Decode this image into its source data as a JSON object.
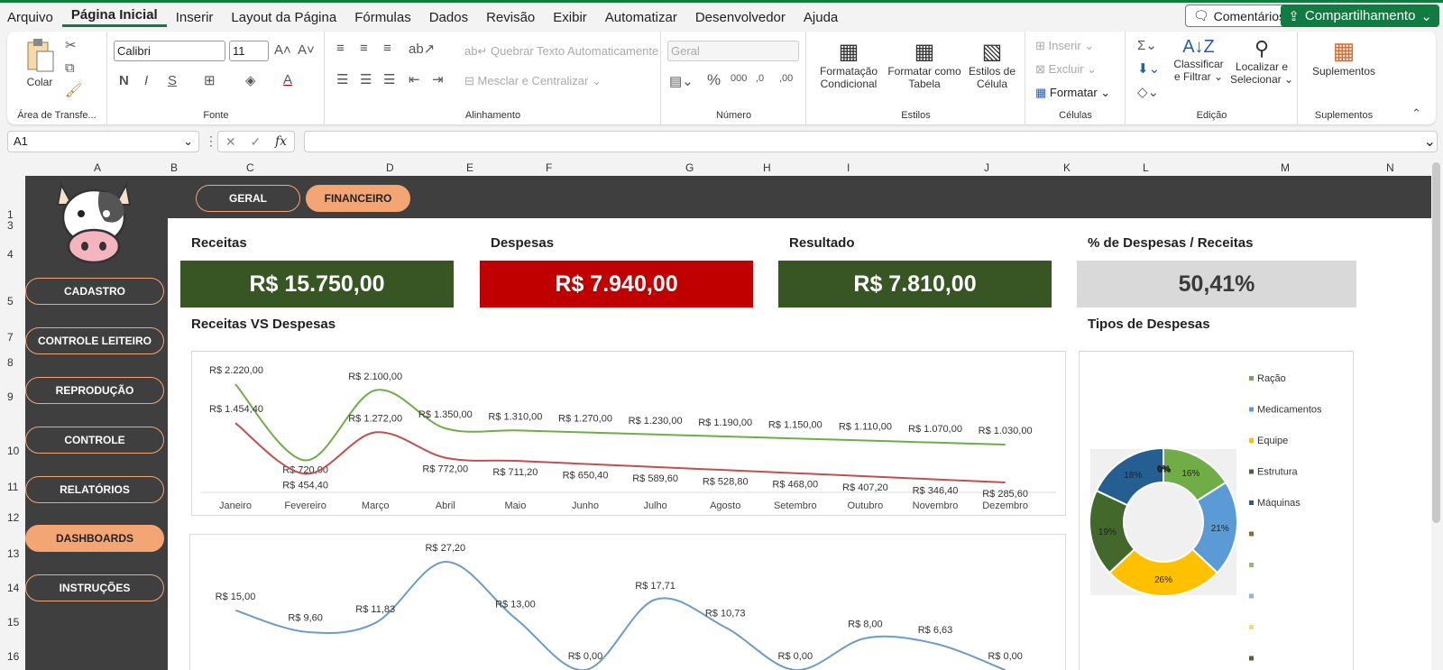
{
  "menu": [
    "Arquivo",
    "Página Inicial",
    "Inserir",
    "Layout da Página",
    "Fórmulas",
    "Dados",
    "Revisão",
    "Exibir",
    "Automatizar",
    "Desenvolvedor",
    "Ajuda"
  ],
  "actions": {
    "comments": "Comentários",
    "share": "Compartilhamento"
  },
  "ribbon": {
    "clipboard": {
      "paste": "Colar",
      "label": "Área de Transfe..."
    },
    "font": {
      "name": "Calibri",
      "size": "11",
      "label": "Fonte"
    },
    "alignment": {
      "wrap": "Quebrar Texto Automaticamente",
      "merge": "Mesclar e Centralizar",
      "label": "Alinhamento"
    },
    "number": {
      "format": "Geral",
      "label": "Número"
    },
    "styles": {
      "cond1": "Formatação",
      "cond2": "Condicional",
      "table1": "Formatar como",
      "table2": "Tabela",
      "cell1": "Estilos de",
      "cell2": "Célula",
      "label": "Estilos"
    },
    "cells": {
      "insert": "Inserir",
      "delete": "Excluir",
      "format": "Formatar",
      "label": "Células"
    },
    "editing": {
      "sort1": "Classificar",
      "sort2": "e Filtrar",
      "find1": "Localizar e",
      "find2": "Selecionar",
      "label": "Edição"
    },
    "addins": {
      "btn": "Suplementos",
      "label": "Suplementos"
    }
  },
  "formula": {
    "namebox": "A1",
    "fx": "fx",
    "value": ""
  },
  "columns": [
    "A",
    "B",
    "C",
    "D",
    "E",
    "F",
    "G",
    "H",
    "I",
    "J",
    "K",
    "L",
    "M",
    "N"
  ],
  "rows": [
    "1",
    "3",
    "4",
    "5",
    "7",
    "8",
    "9",
    "10",
    "11",
    "12",
    "13",
    "14",
    "15",
    "16"
  ],
  "tabs": {
    "geral": "GERAL",
    "financeiro": "FINANCEIRO"
  },
  "nav": [
    "CADASTRO",
    "CONTROLE LEITEIRO",
    "REPRODUÇÃO",
    "CONTROLE",
    "RELATÓRIOS",
    "DASHBOARDS",
    "INSTRUÇÕES"
  ],
  "kpis": [
    {
      "label": "Receitas",
      "value": "R$ 15.750,00",
      "color": "#375623"
    },
    {
      "label": "Despesas",
      "value": "R$ 7.940,00",
      "color": "#c00000"
    },
    {
      "label": "Resultado",
      "value": "R$ 7.810,00",
      "color": "#375623"
    },
    {
      "label": "% de Despesas / Receitas",
      "value": "50,41%",
      "color": "#d9d9d9"
    }
  ],
  "sections": {
    "line": "Receitas VS Despesas",
    "pie": "Tipos de Despesas"
  },
  "chart_data": [
    {
      "type": "line",
      "title": "Receitas VS Despesas",
      "categories": [
        "Janeiro",
        "Fevereiro",
        "Março",
        "Abril",
        "Maio",
        "Junho",
        "Julho",
        "Agosto",
        "Setembro",
        "Outubro",
        "Novembro",
        "Dezembro"
      ],
      "series": [
        {
          "color": "#70ad47",
          "values": [
            2220,
            720,
            2100,
            1350,
            1310,
            1270,
            1230,
            1190,
            1150,
            1110,
            1070,
            1030
          ],
          "labels": [
            "R$ 2.220,00",
            "R$ 720,00",
            "R$ 2.100,00",
            "R$ 1.350,00",
            "R$ 1.310,00",
            "R$ 1.270,00",
            "R$ 1.230,00",
            "R$ 1.190,00",
            "R$ 1.150,00",
            "R$ 1.110,00",
            "R$ 1.070,00",
            "R$ 1.030,00"
          ]
        },
        {
          "color": "#c0504d",
          "values": [
            1454.4,
            454.4,
            1272,
            772,
            711.2,
            650.4,
            589.6,
            528.8,
            468,
            407.2,
            346.4,
            285.6
          ],
          "labels": [
            "R$ 1.454,40",
            "R$ 454,40",
            "R$ 1.272,00",
            "R$ 772,00",
            "R$ 711,20",
            "R$ 650,40",
            "R$ 589,60",
            "R$ 528,80",
            "R$ 468,00",
            "R$ 407,20",
            "R$ 346,40",
            "R$ 285,60"
          ]
        }
      ]
    },
    {
      "type": "line",
      "series": [
        {
          "color": "#6d9cc8",
          "values": [
            15,
            9.6,
            11.83,
            27.2,
            13,
            0,
            17.71,
            10.73,
            0,
            8,
            6.63,
            0
          ],
          "labels": [
            "R$ 15,00",
            "R$ 9,60",
            "R$ 11,83",
            "R$ 27,20",
            "R$ 13,00",
            "R$ 0,00",
            "R$ 17,71",
            "R$ 10,73",
            "R$ 0,00",
            "R$ 8,00",
            "R$ 6,63",
            "R$ 0,00"
          ]
        }
      ]
    },
    {
      "type": "pie",
      "title": "Tipos de Despesas",
      "legend": [
        "Ração",
        "Medicamentos",
        "Equipe",
        "Estrutura",
        "Máquinas"
      ],
      "legend_extra_colors": [
        "#8a6d1f",
        "#8fbc6a",
        "#8db3e2",
        "#ffd966",
        "#4a6b2e"
      ],
      "slices": [
        {
          "name": "Ração",
          "value": 16,
          "label": "16%",
          "color": "#70ad47"
        },
        {
          "name": "Medicamentos",
          "value": 21,
          "label": "21%",
          "color": "#5b9bd5"
        },
        {
          "name": "Equipe",
          "value": 26,
          "label": "26%",
          "color": "#ffc000"
        },
        {
          "name": "Estrutura",
          "value": 19,
          "label": "19%",
          "color": "#43682b"
        },
        {
          "name": "Máquinas",
          "value": 18,
          "label": "18%",
          "color": "#255e91"
        }
      ],
      "extra_labels": [
        "0%",
        "0%"
      ]
    }
  ]
}
